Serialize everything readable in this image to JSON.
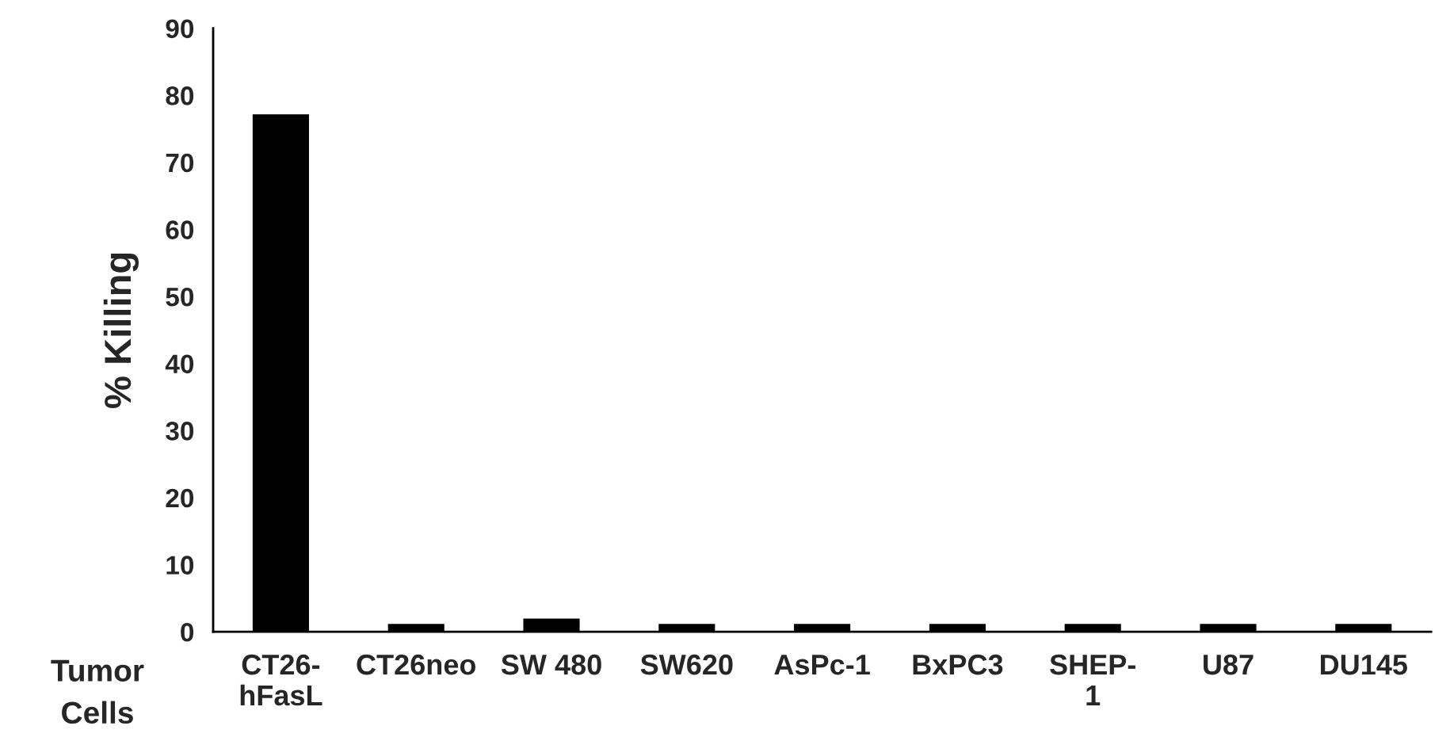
{
  "chart_data": {
    "type": "bar",
    "xlabel": "Tumor\nCells",
    "ylabel": "% Killing",
    "categories": [
      "CT26-\nhFasL",
      "CT26neo",
      "SW 480",
      "SW620",
      "AsPc-1",
      "BxPC3",
      "SHEP-\n1",
      "U87",
      "DU145"
    ],
    "values": [
      77,
      1,
      1.8,
      1,
      1,
      1,
      1,
      1,
      1
    ],
    "color": "#000000",
    "ylim": [
      0,
      90
    ],
    "yticks": [
      0,
      10,
      20,
      30,
      40,
      50,
      60,
      70,
      80,
      90
    ],
    "grid": false
  }
}
